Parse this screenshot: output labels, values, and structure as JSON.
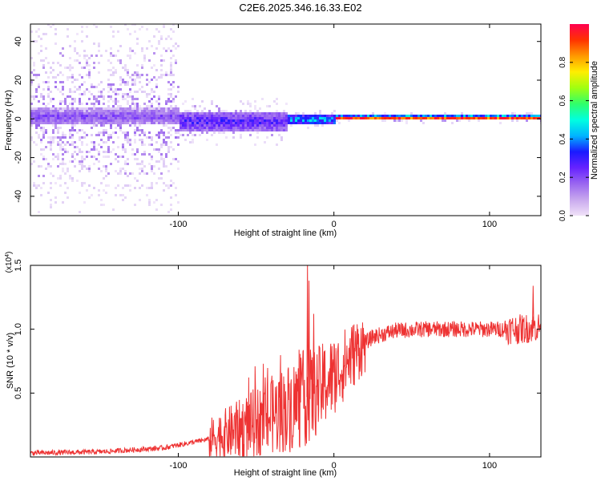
{
  "title": "C2E6.2025.346.16.33.E02",
  "chart_data": [
    {
      "type": "heatmap",
      "xlabel": "Height of straight line (km)",
      "ylabel": "Frequency (Hz)",
      "xlim": [
        -195,
        133
      ],
      "ylim": [
        -50,
        49
      ],
      "xticks": [
        -100,
        0,
        100
      ],
      "yticks": [
        -40,
        -20,
        0,
        20,
        40
      ],
      "colorbar": {
        "label": "Normalized spectral amplitude",
        "range": [
          0,
          1
        ],
        "ticks": [
          "0.0",
          "0.2",
          "0.4",
          "0.6",
          "0.8"
        ],
        "colors": [
          "#f0e2f8",
          "#c8a8ee",
          "#9a66f0",
          "#6622ff",
          "#1a1aff",
          "#00b4ff",
          "#00ffe0",
          "#30ff6a",
          "#a0ff10",
          "#ffee00",
          "#ff9900",
          "#ff3300",
          "#ff0050"
        ]
      },
      "bands": [
        {
          "x_start": -195,
          "x_end": -100,
          "center_hz": 0.5,
          "halfwidth_hz": 4.5,
          "peak_amplitude": 0.25,
          "background_spread_hz": 50
        },
        {
          "x_start": -100,
          "x_end": -30,
          "center_hz": -2,
          "halfwidth_hz": 5,
          "peak_amplitude": 0.35,
          "background_spread_hz": 12
        },
        {
          "x_start": -30,
          "x_end": 0,
          "center_hz": -1,
          "halfwidth_hz": 3,
          "peak_amplitude": 0.55,
          "background_spread_hz": 5
        },
        {
          "x_start": 0,
          "x_end": 133,
          "center_hz": 0,
          "halfwidth_hz": 1,
          "peak_amplitude": 0.95,
          "background_spread_hz": 3
        }
      ]
    },
    {
      "type": "line",
      "xlabel": "Height of straight line (km)",
      "ylabel": "SNR (10 * v/v)",
      "multiplier_label": "(x10",
      "multiplier_exp": "4",
      "xlim": [
        -195,
        133
      ],
      "ylim": [
        0,
        1.5
      ],
      "xticks": [
        -100,
        0,
        100
      ],
      "yticks": [
        "0.5",
        "1.0",
        "1.5"
      ],
      "color": "#ee3333",
      "trend": [
        {
          "x": -195,
          "snr": 0.03
        },
        {
          "x": -150,
          "snr": 0.04
        },
        {
          "x": -110,
          "snr": 0.07
        },
        {
          "x": -80,
          "snr": 0.14
        },
        {
          "x": -60,
          "snr": 0.22
        },
        {
          "x": -45,
          "snr": 0.3
        },
        {
          "x": -30,
          "snr": 0.38
        },
        {
          "x": -20,
          "snr": 0.45
        },
        {
          "x": -12,
          "snr": 0.5
        },
        {
          "x": -5,
          "snr": 0.58
        },
        {
          "x": 5,
          "snr": 0.7
        },
        {
          "x": 15,
          "snr": 0.84
        },
        {
          "x": 25,
          "snr": 0.94
        },
        {
          "x": 40,
          "snr": 0.99
        },
        {
          "x": 60,
          "snr": 1.0
        },
        {
          "x": 80,
          "snr": 1.0
        },
        {
          "x": 100,
          "snr": 1.0
        },
        {
          "x": 120,
          "snr": 1.0
        },
        {
          "x": 133,
          "snr": 1.02
        }
      ],
      "spikes": [
        {
          "x": -17,
          "snr": 1.52
        },
        {
          "x": -16,
          "snr": 1.38
        },
        {
          "x": -13,
          "snr": 1.12
        },
        {
          "x": 128,
          "snr": 1.34
        }
      ]
    }
  ]
}
